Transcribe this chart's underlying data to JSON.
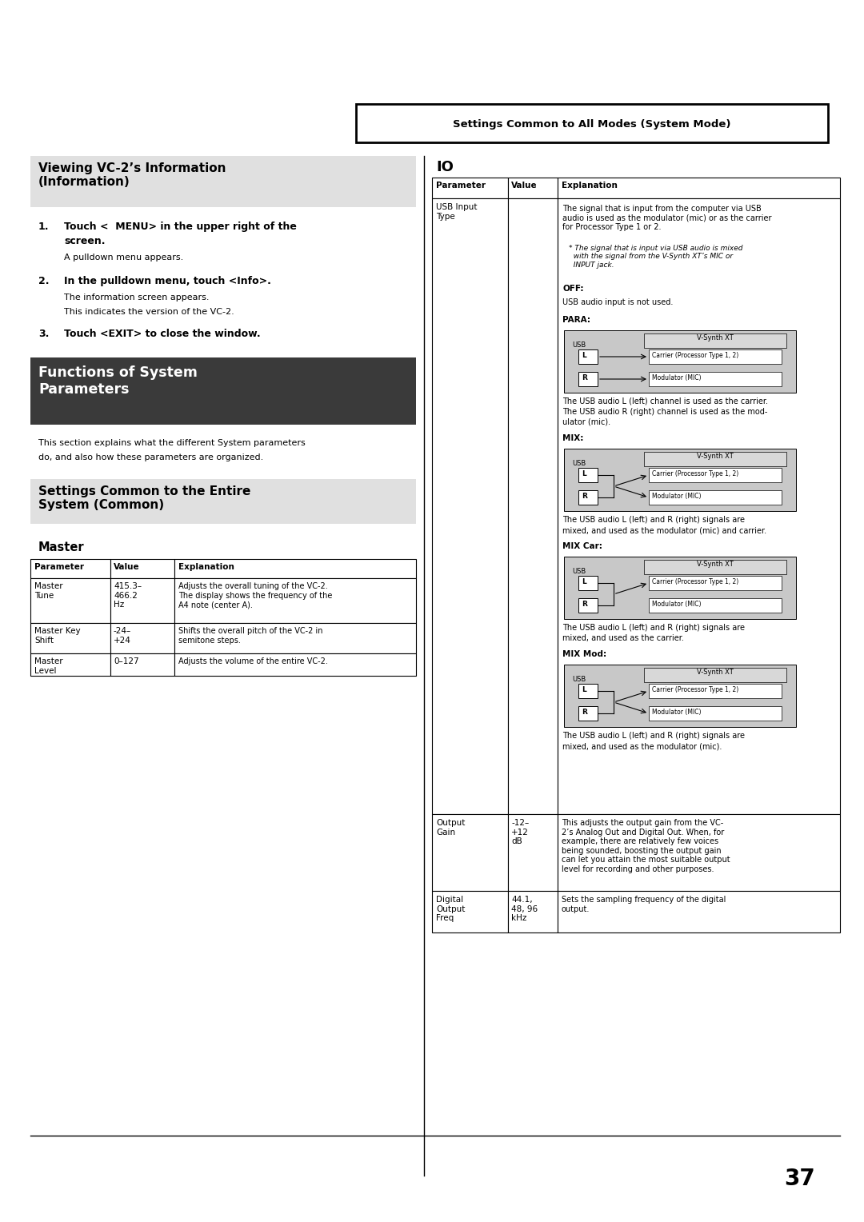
{
  "page_bg": "#ffffff",
  "page_number": "37",
  "header_box_text": "Settings Common to All Modes (System Mode)",
  "section1_title": "Viewing VC-2’s Information\n(Information)",
  "section1_bg": "#e0e0e0",
  "section2_title": "Functions of System\nParameters",
  "section2_bg": "#3a3a3a",
  "section2_fg": "#ffffff",
  "section2_body1": "This section explains what the different System parameters",
  "section2_body2": "do, and also how these parameters are organized.",
  "section3_title": "Settings Common to the Entire\nSystem (Common)",
  "section3_bg": "#e0e0e0",
  "master_title": "Master",
  "io_title": "IO",
  "off_label": "OFF:",
  "off_text": "USB audio input is not used.",
  "para_label": "PARA:",
  "mix_label": "MIX:",
  "mixcar_label": "MIX Car:",
  "mixmod_label": "MIX Mod:",
  "para_desc1": "The USB audio L (left) channel is used as the carrier.",
  "para_desc2": "The USB audio R (right) channel is used as the mod-",
  "para_desc3": "ulator (mic).",
  "mix_desc1": "The USB audio L (left) and R (right) signals are",
  "mix_desc2": "mixed, and used as the modulator (mic) and carrier.",
  "mixcar_desc1": "The USB audio L (left) and R (right) signals are",
  "mixcar_desc2": "mixed, and used as the carrier.",
  "mixmod_desc1": "The USB audio L (left) and R (right) signals are",
  "mixmod_desc2": "mixed, and used as the modulator (mic).",
  "diagram_bg": "#c8c8c8",
  "diagram_inner_bg": "#d8d8d8",
  "diagram_box_bg": "#ffffff"
}
